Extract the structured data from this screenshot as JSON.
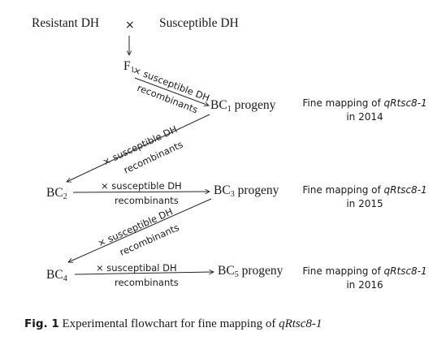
{
  "nodes": {
    "resistant": "Resistant DH",
    "cross": "×",
    "susceptible": "Susceptible DH",
    "f1": {
      "base": "F",
      "sub": "1"
    },
    "bc1": {
      "base": "BC",
      "sub": "1",
      "suffix": " progeny"
    },
    "bc2": {
      "base": "BC",
      "sub": "2"
    },
    "bc3": {
      "base": "BC",
      "sub": "3",
      "suffix": " progeny"
    },
    "bc4": {
      "base": "BC",
      "sub": "4"
    },
    "bc5": {
      "base": "BC",
      "sub": "5",
      "suffix": " progeny"
    }
  },
  "edges": {
    "f1_to_bc1": {
      "line1": "× susceptible DH",
      "line2": "recombinants"
    },
    "bc1_to_bc2": {
      "line1": "× susceptible DH",
      "line2": "recombinants"
    },
    "bc2_to_bc3": {
      "line1": "× susceptible DH",
      "line2": "recombinants"
    },
    "bc3_to_bc4": {
      "line1": "× susceptible DH",
      "line2": "recombinants"
    },
    "bc4_to_bc5": {
      "line1": "× susceptibal DH",
      "line2": "recombinants"
    }
  },
  "notes": [
    {
      "prefix": "Fine mapping of ",
      "gene": "qRtsc8-1",
      "year": "in 2014"
    },
    {
      "prefix": "Fine mapping of ",
      "gene": "qRtsc8-1",
      "year": "in 2015"
    },
    {
      "prefix": "Fine mapping of ",
      "gene": "qRtsc8-1",
      "year": "in 2016"
    }
  ],
  "caption": {
    "label": "Fig. 1",
    "text": "Experimental flowchart for fine mapping of ",
    "gene": "qRtsc8-1"
  }
}
